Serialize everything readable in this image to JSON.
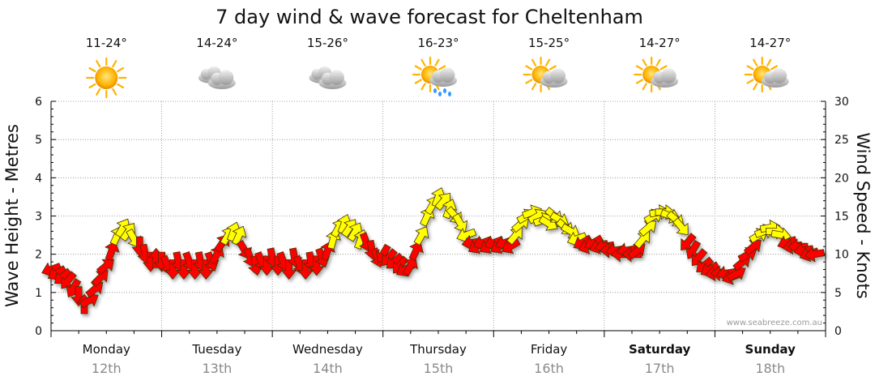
{
  "chart_data": {
    "type": "scatter",
    "title": "7 day wind & wave forecast for Cheltenham",
    "ylabel_left": "Wave Height - Metres",
    "ylabel_right": "Wind Speed - Knots",
    "ylim_left": [
      0,
      6
    ],
    "ylim_right": [
      0,
      30
    ],
    "yticks_left": [
      "0",
      "1",
      "2",
      "3",
      "4",
      "5",
      "6"
    ],
    "yticks_right": [
      "0",
      "5",
      "10",
      "15",
      "20",
      "25",
      "30"
    ],
    "grid": true,
    "watermark": "www.seabreeze.com.au",
    "days": [
      {
        "name": "Monday",
        "date": "12th",
        "temp": "11-24°",
        "weather": "sunny",
        "bold": false
      },
      {
        "name": "Tuesday",
        "date": "13th",
        "temp": "14-24°",
        "weather": "cloudy",
        "bold": false
      },
      {
        "name": "Wednesday",
        "date": "14th",
        "temp": "15-26°",
        "weather": "cloudy",
        "bold": false
      },
      {
        "name": "Thursday",
        "date": "15th",
        "temp": "16-23°",
        "weather": "showers",
        "bold": false
      },
      {
        "name": "Friday",
        "date": "16th",
        "temp": "15-25°",
        "weather": "partly-cloudy",
        "bold": false
      },
      {
        "name": "Saturday",
        "date": "17th",
        "temp": "14-27°",
        "weather": "partly-cloudy",
        "bold": true
      },
      {
        "name": "Sunday",
        "date": "18th",
        "temp": "14-27°",
        "weather": "partly-cloudy",
        "bold": true
      }
    ],
    "wind": [
      {
        "t": 0.0,
        "kn": 8.0,
        "dir": 250
      },
      {
        "t": 0.05,
        "kn": 7.5,
        "dir": 240
      },
      {
        "t": 0.1,
        "kn": 7.0,
        "dir": 230
      },
      {
        "t": 0.15,
        "kn": 6.5,
        "dir": 220
      },
      {
        "t": 0.2,
        "kn": 5.5,
        "dir": 210
      },
      {
        "t": 0.25,
        "kn": 4.5,
        "dir": 180
      },
      {
        "t": 0.3,
        "kn": 3.5,
        "dir": 0
      },
      {
        "t": 0.35,
        "kn": 4.0,
        "dir": 60
      },
      {
        "t": 0.4,
        "kn": 5.5,
        "dir": 50
      },
      {
        "t": 0.45,
        "kn": 7.0,
        "dir": 45
      },
      {
        "t": 0.5,
        "kn": 8.5,
        "dir": 50
      },
      {
        "t": 0.55,
        "kn": 10.5,
        "dir": 20
      },
      {
        "t": 0.6,
        "kn": 12.5,
        "dir": 25
      },
      {
        "t": 0.65,
        "kn": 13.5,
        "dir": 30
      },
      {
        "t": 0.7,
        "kn": 13.0,
        "dir": 35
      },
      {
        "t": 0.75,
        "kn": 12.0,
        "dir": 150
      },
      {
        "t": 0.8,
        "kn": 11.0,
        "dir": 180
      },
      {
        "t": 0.85,
        "kn": 10.0,
        "dir": 170
      },
      {
        "t": 0.9,
        "kn": 9.0,
        "dir": 180
      },
      {
        "t": 0.95,
        "kn": 9.5,
        "dir": 0
      },
      {
        "t": 1.0,
        "kn": 9.0,
        "dir": 180
      },
      {
        "t": 1.05,
        "kn": 8.5,
        "dir": 160
      },
      {
        "t": 1.1,
        "kn": 8.0,
        "dir": 180
      },
      {
        "t": 1.15,
        "kn": 9.0,
        "dir": 170
      },
      {
        "t": 1.2,
        "kn": 8.0,
        "dir": 180
      },
      {
        "t": 1.25,
        "kn": 9.0,
        "dir": 160
      },
      {
        "t": 1.3,
        "kn": 8.0,
        "dir": 180
      },
      {
        "t": 1.35,
        "kn": 9.0,
        "dir": 170
      },
      {
        "t": 1.4,
        "kn": 8.0,
        "dir": 180
      },
      {
        "t": 1.45,
        "kn": 9.0,
        "dir": 160
      },
      {
        "t": 1.5,
        "kn": 10.0,
        "dir": 30
      },
      {
        "t": 1.55,
        "kn": 11.5,
        "dir": 35
      },
      {
        "t": 1.6,
        "kn": 12.5,
        "dir": 30
      },
      {
        "t": 1.65,
        "kn": 13.0,
        "dir": 20
      },
      {
        "t": 1.7,
        "kn": 12.5,
        "dir": 25
      },
      {
        "t": 1.75,
        "kn": 10.5,
        "dir": 150
      },
      {
        "t": 1.8,
        "kn": 9.5,
        "dir": 160
      },
      {
        "t": 1.85,
        "kn": 8.5,
        "dir": 170
      },
      {
        "t": 1.9,
        "kn": 9.0,
        "dir": 160
      },
      {
        "t": 1.95,
        "kn": 8.5,
        "dir": 180
      },
      {
        "t": 2.0,
        "kn": 9.5,
        "dir": 170
      },
      {
        "t": 2.05,
        "kn": 8.5,
        "dir": 180
      },
      {
        "t": 2.1,
        "kn": 9.0,
        "dir": 160
      },
      {
        "t": 2.15,
        "kn": 8.0,
        "dir": 180
      },
      {
        "t": 2.2,
        "kn": 9.5,
        "dir": 170
      },
      {
        "t": 2.25,
        "kn": 8.5,
        "dir": 160
      },
      {
        "t": 2.3,
        "kn": 8.0,
        "dir": 180
      },
      {
        "t": 2.35,
        "kn": 9.0,
        "dir": 170
      },
      {
        "t": 2.4,
        "kn": 8.5,
        "dir": 180
      },
      {
        "t": 2.45,
        "kn": 9.5,
        "dir": 160
      },
      {
        "t": 2.5,
        "kn": 10.5,
        "dir": 20
      },
      {
        "t": 2.55,
        "kn": 12.0,
        "dir": 15
      },
      {
        "t": 2.6,
        "kn": 13.5,
        "dir": 30
      },
      {
        "t": 2.65,
        "kn": 14.0,
        "dir": 20
      },
      {
        "t": 2.7,
        "kn": 13.5,
        "dir": 35
      },
      {
        "t": 2.75,
        "kn": 13.0,
        "dir": 30
      },
      {
        "t": 2.8,
        "kn": 12.0,
        "dir": 20
      },
      {
        "t": 2.85,
        "kn": 11.5,
        "dir": 160
      },
      {
        "t": 2.9,
        "kn": 10.5,
        "dir": 170
      },
      {
        "t": 2.95,
        "kn": 9.5,
        "dir": 160
      },
      {
        "t": 3.0,
        "kn": 10.0,
        "dir": 210
      },
      {
        "t": 3.05,
        "kn": 9.5,
        "dir": 220
      },
      {
        "t": 3.1,
        "kn": 9.0,
        "dir": 230
      },
      {
        "t": 3.15,
        "kn": 8.5,
        "dir": 220
      },
      {
        "t": 3.2,
        "kn": 8.0,
        "dir": 240
      },
      {
        "t": 3.25,
        "kn": 8.5,
        "dir": 30
      },
      {
        "t": 3.3,
        "kn": 10.5,
        "dir": 25
      },
      {
        "t": 3.35,
        "kn": 12.5,
        "dir": 30
      },
      {
        "t": 3.4,
        "kn": 15.0,
        "dir": 25
      },
      {
        "t": 3.45,
        "kn": 16.5,
        "dir": 30
      },
      {
        "t": 3.5,
        "kn": 17.5,
        "dir": 20
      },
      {
        "t": 3.55,
        "kn": 17.0,
        "dir": 40
      },
      {
        "t": 3.6,
        "kn": 16.0,
        "dir": 20
      },
      {
        "t": 3.65,
        "kn": 15.0,
        "dir": 140
      },
      {
        "t": 3.7,
        "kn": 14.0,
        "dir": 150
      },
      {
        "t": 3.75,
        "kn": 12.5,
        "dir": 250
      },
      {
        "t": 3.8,
        "kn": 11.5,
        "dir": 260
      },
      {
        "t": 3.85,
        "kn": 11.0,
        "dir": 240
      },
      {
        "t": 3.9,
        "kn": 11.5,
        "dir": 250
      },
      {
        "t": 3.95,
        "kn": 11.0,
        "dir": 240
      },
      {
        "t": 4.0,
        "kn": 11.5,
        "dir": 250
      },
      {
        "t": 4.05,
        "kn": 11.0,
        "dir": 240
      },
      {
        "t": 4.1,
        "kn": 11.5,
        "dir": 250
      },
      {
        "t": 4.15,
        "kn": 11.0,
        "dir": 240
      },
      {
        "t": 4.2,
        "kn": 12.5,
        "dir": 40
      },
      {
        "t": 4.25,
        "kn": 14.0,
        "dir": 50
      },
      {
        "t": 4.3,
        "kn": 15.0,
        "dir": 60
      },
      {
        "t": 4.35,
        "kn": 15.5,
        "dir": 70
      },
      {
        "t": 4.4,
        "kn": 15.0,
        "dir": 60
      },
      {
        "t": 4.45,
        "kn": 14.5,
        "dir": 70
      },
      {
        "t": 4.5,
        "kn": 14.0,
        "dir": 120
      },
      {
        "t": 4.55,
        "kn": 15.0,
        "dir": 130
      },
      {
        "t": 4.6,
        "kn": 14.5,
        "dir": 120
      },
      {
        "t": 4.65,
        "kn": 13.5,
        "dir": 130
      },
      {
        "t": 4.7,
        "kn": 13.0,
        "dir": 120
      },
      {
        "t": 4.75,
        "kn": 12.0,
        "dir": 250
      },
      {
        "t": 4.8,
        "kn": 11.5,
        "dir": 240
      },
      {
        "t": 4.85,
        "kn": 11.0,
        "dir": 250
      },
      {
        "t": 4.9,
        "kn": 11.5,
        "dir": 240
      },
      {
        "t": 4.95,
        "kn": 11.0,
        "dir": 250
      },
      {
        "t": 5.0,
        "kn": 11.0,
        "dir": 260
      },
      {
        "t": 5.05,
        "kn": 10.5,
        "dir": 270
      },
      {
        "t": 5.1,
        "kn": 10.5,
        "dir": 260
      },
      {
        "t": 5.15,
        "kn": 10.0,
        "dir": 270
      },
      {
        "t": 5.2,
        "kn": 10.5,
        "dir": 260
      },
      {
        "t": 5.25,
        "kn": 10.0,
        "dir": 270
      },
      {
        "t": 5.3,
        "kn": 10.5,
        "dir": 50
      },
      {
        "t": 5.35,
        "kn": 12.0,
        "dir": 40
      },
      {
        "t": 5.4,
        "kn": 13.5,
        "dir": 50
      },
      {
        "t": 5.45,
        "kn": 15.0,
        "dir": 60
      },
      {
        "t": 5.5,
        "kn": 15.5,
        "dir": 80
      },
      {
        "t": 5.55,
        "kn": 15.5,
        "dir": 90
      },
      {
        "t": 5.6,
        "kn": 15.0,
        "dir": 110
      },
      {
        "t": 5.65,
        "kn": 14.5,
        "dir": 130
      },
      {
        "t": 5.7,
        "kn": 13.5,
        "dir": 140
      },
      {
        "t": 5.75,
        "kn": 11.5,
        "dir": 220
      },
      {
        "t": 5.8,
        "kn": 10.5,
        "dir": 210
      },
      {
        "t": 5.85,
        "kn": 9.5,
        "dir": 220
      },
      {
        "t": 5.9,
        "kn": 8.5,
        "dir": 230
      },
      {
        "t": 5.95,
        "kn": 8.0,
        "dir": 240
      },
      {
        "t": 6.0,
        "kn": 7.5,
        "dir": 260
      },
      {
        "t": 6.05,
        "kn": 7.5,
        "dir": 270
      },
      {
        "t": 6.1,
        "kn": 7.5,
        "dir": 260
      },
      {
        "t": 6.15,
        "kn": 7.0,
        "dir": 250
      },
      {
        "t": 6.2,
        "kn": 7.5,
        "dir": 60
      },
      {
        "t": 6.25,
        "kn": 9.0,
        "dir": 50
      },
      {
        "t": 6.3,
        "kn": 10.0,
        "dir": 60
      },
      {
        "t": 6.35,
        "kn": 11.0,
        "dir": 50
      },
      {
        "t": 6.4,
        "kn": 12.5,
        "dir": 60
      },
      {
        "t": 6.45,
        "kn": 13.0,
        "dir": 70
      },
      {
        "t": 6.5,
        "kn": 13.5,
        "dir": 80
      },
      {
        "t": 6.55,
        "kn": 13.0,
        "dir": 90
      },
      {
        "t": 6.6,
        "kn": 12.5,
        "dir": 100
      },
      {
        "t": 6.65,
        "kn": 11.5,
        "dir": 250
      },
      {
        "t": 6.7,
        "kn": 11.0,
        "dir": 260
      },
      {
        "t": 6.75,
        "kn": 11.0,
        "dir": 270
      },
      {
        "t": 6.8,
        "kn": 10.5,
        "dir": 260
      },
      {
        "t": 6.85,
        "kn": 10.0,
        "dir": 250
      },
      {
        "t": 6.9,
        "kn": 10.0,
        "dir": 260
      }
    ],
    "colors": {
      "low": "#ff0000",
      "high": "#ffff00",
      "outline": "#4a3000",
      "grid": "#888888",
      "axis": "#000000"
    }
  }
}
